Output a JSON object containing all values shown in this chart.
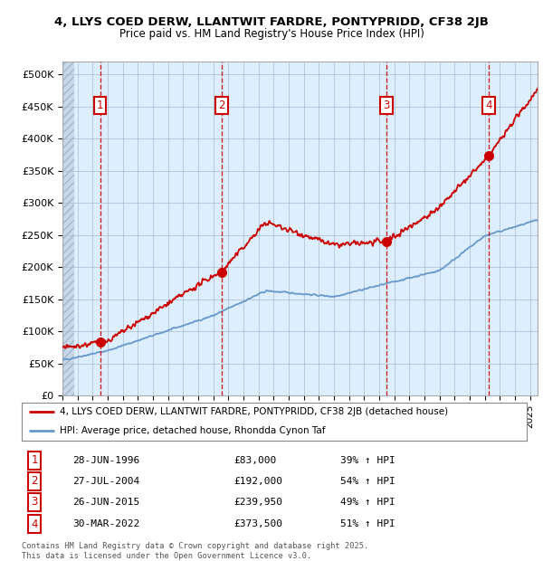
{
  "title_line1": "4, LLYS COED DERW, LLANTWIT FARDRE, PONTYPRIDD, CF38 2JB",
  "title_line2": "Price paid vs. HM Land Registry's House Price Index (HPI)",
  "xlim": [
    1994.0,
    2025.5
  ],
  "ylim": [
    0,
    520000
  ],
  "yticks": [
    0,
    50000,
    100000,
    150000,
    200000,
    250000,
    300000,
    350000,
    400000,
    450000,
    500000
  ],
  "ytick_labels": [
    "£0",
    "£50K",
    "£100K",
    "£150K",
    "£200K",
    "£250K",
    "£300K",
    "£350K",
    "£400K",
    "£450K",
    "£500K"
  ],
  "sale_dates": [
    1996.49,
    2004.57,
    2015.48,
    2022.25
  ],
  "sale_prices": [
    83000,
    192000,
    239950,
    373500
  ],
  "sale_labels": [
    "1",
    "2",
    "3",
    "4"
  ],
  "sale_label_dates_str": [
    "28-JUN-1996",
    "27-JUL-2004",
    "26-JUN-2015",
    "30-MAR-2022"
  ],
  "sale_prices_str": [
    "£83,000",
    "£192,000",
    "£239,950",
    "£373,500"
  ],
  "sale_pct_str": [
    "39% ↑ HPI",
    "54% ↑ HPI",
    "49% ↑ HPI",
    "51% ↑ HPI"
  ],
  "red_color": "#cc0000",
  "blue_color": "#6699cc",
  "background_color": "#ddeeff",
  "legend_label_red": "4, LLYS COED DERW, LLANTWIT FARDRE, PONTYPRIDD, CF38 2JB (detached house)",
  "legend_label_blue": "HPI: Average price, detached house, Rhondda Cynon Taf",
  "footer_text": "Contains HM Land Registry data © Crown copyright and database right 2025.\nThis data is licensed under the Open Government Licence v3.0."
}
